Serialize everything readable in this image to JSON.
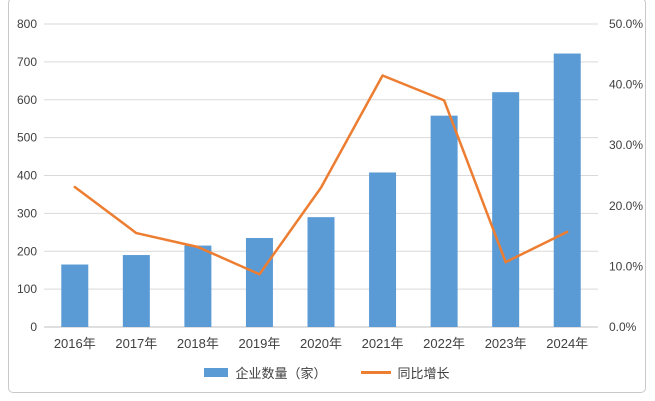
{
  "chart_data": {
    "type": "bar",
    "categories": [
      "2016年",
      "2017年",
      "2018年",
      "2019年",
      "2020年",
      "2021年",
      "2022年",
      "2023年",
      "2024年"
    ],
    "series": [
      {
        "name": "企业数量（家）",
        "type": "bar",
        "axis": "left",
        "values": [
          165,
          190,
          215,
          235,
          290,
          408,
          558,
          620,
          722
        ]
      },
      {
        "name": "同比增长",
        "type": "line",
        "axis": "right",
        "values_percent": [
          23.1,
          15.5,
          13.2,
          8.7,
          23.0,
          41.5,
          37.4,
          10.7,
          15.7
        ]
      }
    ],
    "left_axis": {
      "min": 0,
      "max": 800,
      "step": 100,
      "tick_labels": [
        "800",
        "700",
        "600",
        "500",
        "400",
        "300",
        "200",
        "100",
        "0"
      ]
    },
    "right_axis": {
      "min": 0,
      "max": 50,
      "step": 10,
      "tick_labels": [
        "50.0%",
        "40.0%",
        "30.0%",
        "20.0%",
        "10.0%",
        "0.0%"
      ]
    },
    "grid": true,
    "legend_position": "bottom",
    "colors": {
      "bar": "#5B9BD5",
      "line": "#ED7D31",
      "gridline": "#D9D9D9",
      "axis_line": "#BFBFBF",
      "text": "#404040",
      "frame_border": "#C9C9C9",
      "background": "#FFFFFF"
    }
  }
}
